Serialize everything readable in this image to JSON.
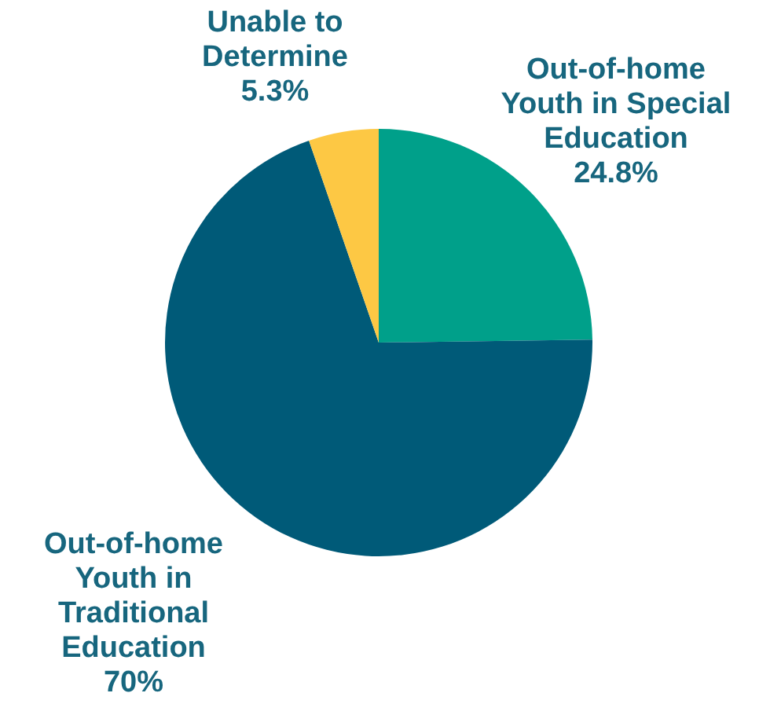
{
  "chart_data": {
    "type": "pie",
    "categories": [
      "Out-of-home Youth in Special Education",
      "Out-of-home Youth in Traditional Education",
      "Unable to Determine"
    ],
    "values": [
      24.8,
      70,
      5.3
    ],
    "value_labels": [
      "24.8%",
      "70%",
      "5.3%"
    ],
    "colors": [
      "#00a08a",
      "#005a78",
      "#fdc844"
    ]
  }
}
